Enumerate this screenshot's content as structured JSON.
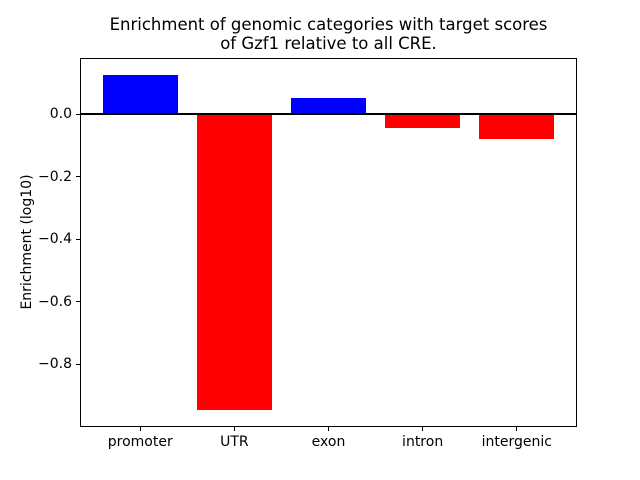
{
  "figure": {
    "background": "#ffffff",
    "axis_color": "#000000"
  },
  "chart_data": {
    "type": "bar",
    "title": "Enrichment of genomic categories with target scores\nof Gzf1 relative to all CRE.",
    "xlabel": "",
    "ylabel": "Enrichment (log10)",
    "categories": [
      "promoter",
      "UTR",
      "exon",
      "intron",
      "intergenic"
    ],
    "values": [
      0.126,
      -0.946,
      0.053,
      -0.043,
      -0.078
    ],
    "bar_colors": [
      "#0000ff",
      "#ff0000",
      "#0000ff",
      "#ff0000",
      "#ff0000"
    ],
    "positive_color": "#0000ff",
    "negative_color": "#ff0000",
    "yticks": [
      {
        "value": 0.0,
        "label": "0.0"
      },
      {
        "value": -0.2,
        "label": "−0.2"
      },
      {
        "value": -0.4,
        "label": "−0.4"
      },
      {
        "value": -0.6,
        "label": "−0.6"
      },
      {
        "value": -0.8,
        "label": "−0.8"
      }
    ],
    "ylim": [
      -1.0,
      0.18
    ],
    "xlim": [
      -0.64,
      4.64
    ],
    "bar_width_frac": 0.8,
    "zero_line": true,
    "grid": false,
    "legend": null
  }
}
